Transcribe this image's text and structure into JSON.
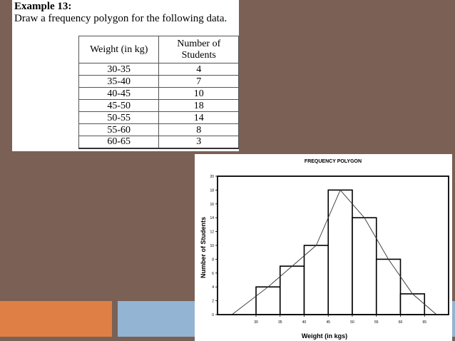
{
  "example": {
    "title": "Example 13:",
    "instruction": "Draw a frequency polygon for the following data."
  },
  "table": {
    "headers": [
      "Weight (in kg)",
      "Number of Students"
    ],
    "rows": [
      [
        "30-35",
        "4"
      ],
      [
        "35-40",
        "7"
      ],
      [
        "40-45",
        "10"
      ],
      [
        "45-50",
        "18"
      ],
      [
        "50-55",
        "14"
      ],
      [
        "55-60",
        "8"
      ],
      [
        "60-65",
        "3"
      ]
    ]
  },
  "colors": {
    "slide_background": "#7a6055",
    "band_orange": "#e07f45",
    "band_blue": "#93b4d3"
  },
  "chart_data": {
    "type": "bar",
    "title": "FREQUENCY POLYGON",
    "xlabel": "Weight (in kgs)",
    "ylabel": "Number of Students",
    "bins": [
      [
        30,
        35
      ],
      [
        35,
        40
      ],
      [
        40,
        45
      ],
      [
        45,
        50
      ],
      [
        50,
        55
      ],
      [
        55,
        60
      ],
      [
        60,
        65
      ]
    ],
    "values": [
      4,
      7,
      10,
      18,
      14,
      8,
      3
    ],
    "polygon": {
      "x": [
        25,
        32.5,
        37.5,
        42.5,
        47.5,
        52.5,
        57.5,
        62.5,
        67.5
      ],
      "y": [
        0,
        4,
        7,
        10,
        18,
        14,
        8,
        3,
        0
      ]
    },
    "xlim": [
      22,
      70
    ],
    "ylim": [
      0,
      20
    ],
    "xticks": [
      30,
      35,
      40,
      45,
      50,
      55,
      60,
      65
    ],
    "yticks": [
      0,
      2,
      4,
      6,
      8,
      10,
      12,
      14,
      16,
      18,
      20
    ],
    "grid": false
  }
}
